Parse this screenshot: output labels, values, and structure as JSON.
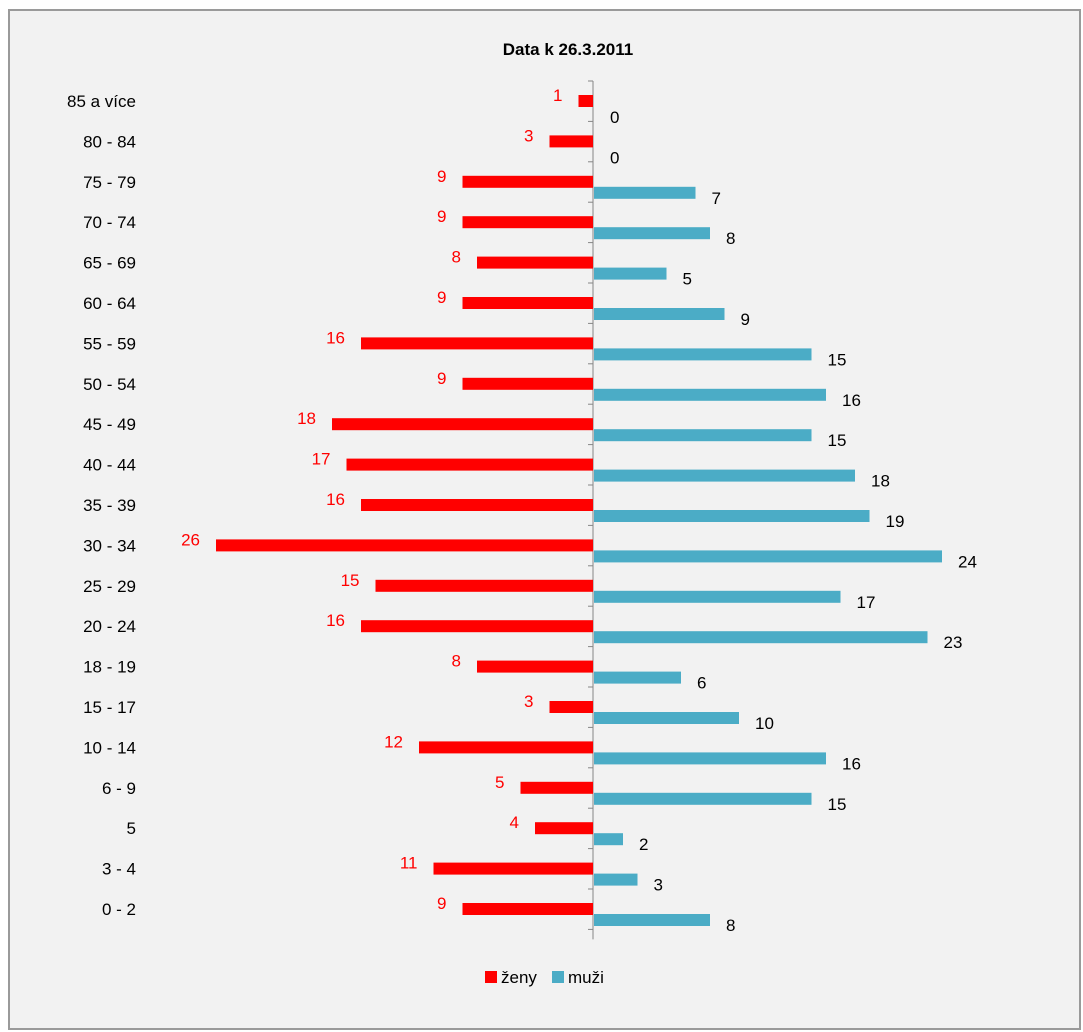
{
  "chart_data": {
    "type": "bar",
    "orientation": "horizontal-population-pyramid",
    "title": "Data k 26.3.2011",
    "categories": [
      "85 a více",
      "80 - 84",
      "75 - 79",
      "70 - 74",
      "65 - 69",
      "60 - 64",
      "55 - 59",
      "50 - 54",
      "45 - 49",
      "40 - 44",
      "35 - 39",
      "30 - 34",
      "25 - 29",
      "20 - 24",
      "18 - 19",
      "15 - 17",
      "10 - 14",
      "6 - 9",
      "5",
      "3 - 4",
      "0 - 2"
    ],
    "series": [
      {
        "name": "ženy",
        "color": "#ff0000",
        "label_color": "#ff0000",
        "values": [
          1,
          3,
          9,
          9,
          8,
          9,
          16,
          9,
          18,
          17,
          16,
          26,
          15,
          16,
          8,
          3,
          12,
          5,
          4,
          11,
          9
        ]
      },
      {
        "name": "muži",
        "color": "#4bacc6",
        "label_color": "#000000",
        "values": [
          0,
          0,
          7,
          8,
          5,
          9,
          15,
          16,
          15,
          18,
          19,
          24,
          17,
          23,
          6,
          10,
          16,
          15,
          2,
          3,
          8
        ]
      }
    ],
    "legend_position": "bottom",
    "grid": false
  }
}
